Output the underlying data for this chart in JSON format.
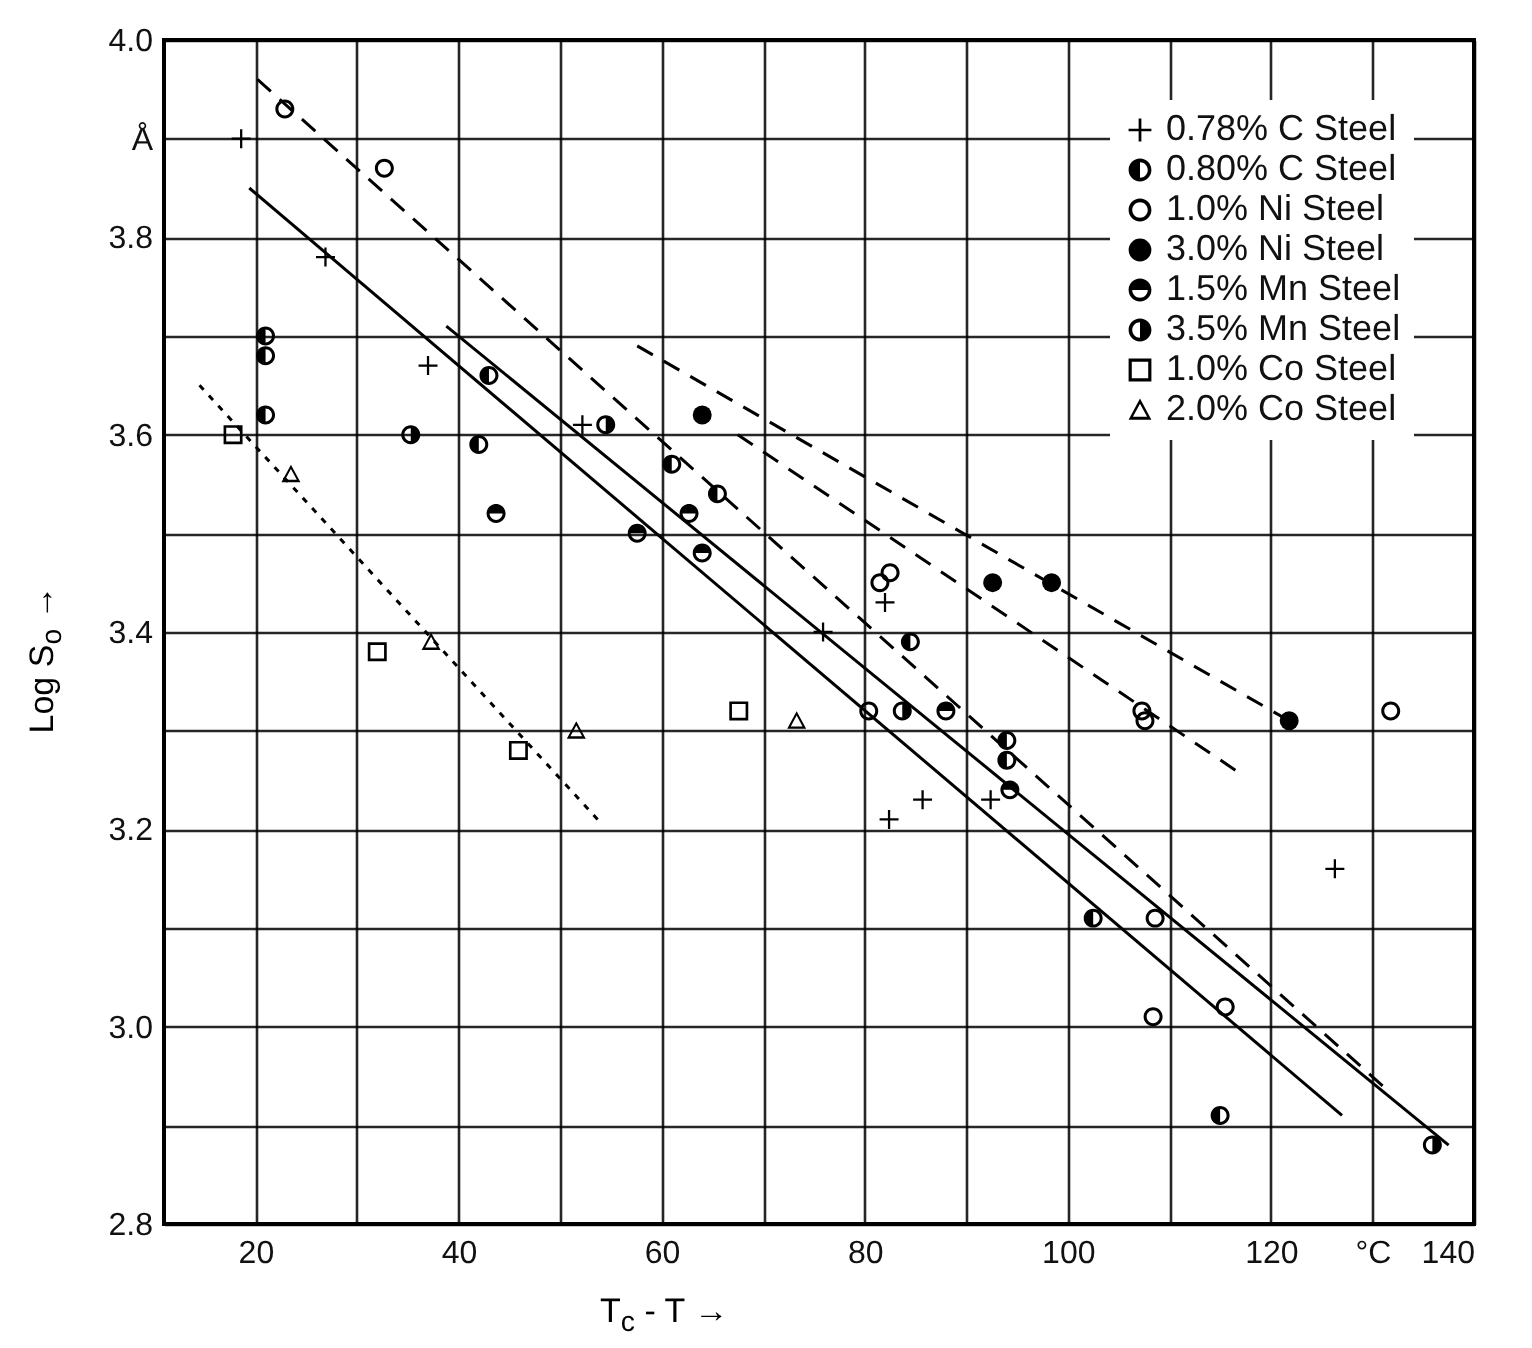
{
  "chart_data": {
    "type": "scatter",
    "xlabel": "T$_{c}$ - T →",
    "ylabel": "Log S$_{o}$ →",
    "xlim": [
      11,
      140
    ],
    "ylim": [
      2.8,
      4.0
    ],
    "xticks": [
      20,
      {
        "value": 30,
        "label": null
      },
      40,
      {
        "value": 50,
        "label": null
      },
      60,
      {
        "value": 70,
        "label": null
      },
      80,
      {
        "value": 90,
        "label": null
      },
      100,
      {
        "value": 110,
        "label": null
      },
      120,
      {
        "value": 130,
        "label": "°C"
      },
      140
    ],
    "yticks": [
      2.8,
      {
        "value": 2.9,
        "label": null
      },
      {
        "value": 3.0,
        "label": "3.0"
      },
      {
        "value": 3.1,
        "label": null
      },
      3.2,
      {
        "value": 3.3,
        "label": null
      },
      3.4,
      {
        "value": 3.5,
        "label": null
      },
      3.6,
      {
        "value": 3.7,
        "label": null
      },
      3.8,
      {
        "value": 3.9,
        "label": "Å"
      },
      {
        "value": 4.0,
        "label": "4.0"
      }
    ],
    "grid": true,
    "legend": "top right",
    "series": [
      {
        "marker": "cross",
        "name": "0.78% C Steel",
        "color": "#000000",
        "x": [
          18.6,
          26.9,
          37,
          52.2,
          75.9,
          82,
          82.4,
          85.7,
          92.4,
          126.3
        ],
        "values": [
          3.9,
          3.78,
          3.67,
          3.61,
          3.4,
          3.43,
          3.21,
          3.23,
          3.23,
          3.16
        ]
      },
      {
        "marker": "circle",
        "name": "0.80% C Steel",
        "color": "#000000",
        "x": [
          21,
          21,
          21,
          43,
          42,
          61,
          65.5,
          84.5,
          94,
          94,
          102.5,
          115
        ],
        "values": [
          3.7,
          3.68,
          3.62,
          3.66,
          3.59,
          3.57,
          3.54,
          3.39,
          3.29,
          3.27,
          3.11,
          2.91
        ]
      },
      {
        "marker": "circle",
        "name": "1.0% Ni  Steel",
        "color": "#000000",
        "x": [
          22.9,
          32.7,
          82.5,
          81.5,
          80.4,
          107.3,
          107.6,
          108.6,
          108.4,
          115.5,
          131.8
        ],
        "values": [
          3.93,
          3.87,
          3.46,
          3.45,
          3.32,
          3.32,
          3.31,
          3.11,
          3.01,
          3.02,
          3.32
        ]
      },
      {
        "marker": "circle",
        "name": "3.0% Ni  Steel",
        "color": "#000000",
        "x": [
          64,
          92.6,
          98.4,
          121.8
        ],
        "values": [
          3.62,
          3.45,
          3.45,
          3.31
        ]
      },
      {
        "marker": "circle",
        "name": "1.5% Mn Steel",
        "color": "#000000",
        "x": [
          43.7,
          57.6,
          62.7,
          64,
          88,
          94.3
        ],
        "values": [
          3.52,
          3.5,
          3.52,
          3.48,
          3.32,
          3.24
        ]
      },
      {
        "marker": "circle",
        "name": "3.5% Mn Steel",
        "color": "#000000",
        "x": [
          35.3,
          54.5,
          83.7,
          135.9
        ],
        "values": [
          3.6,
          3.61,
          3.32,
          2.88
        ]
      },
      {
        "marker": "square",
        "name": "1.0% Co Steel",
        "color": "#000000",
        "x": [
          17.8,
          32,
          45.9,
          67.6
        ],
        "values": [
          3.6,
          3.38,
          3.28,
          3.32
        ]
      },
      {
        "marker": "triangle",
        "name": "2.0% Co Steel",
        "color": "#000000",
        "x": [
          23.5,
          37.3,
          51.6,
          73.3
        ],
        "values": [
          3.56,
          3.39,
          3.3,
          3.31
        ]
      },
      {
        "type": "line",
        "line_style": "solid",
        "color": "#000000",
        "x": [
          19.4,
          127
        ],
        "values": [
          3.85,
          2.91
        ]
      },
      {
        "type": "line",
        "line_style": "solid",
        "color": "#000000",
        "x": [
          38.8,
          137.5
        ],
        "values": [
          3.71,
          2.88
        ]
      },
      {
        "type": "line",
        "line_style": "dashed",
        "color": "#000000",
        "x": [
          20.2,
          131
        ],
        "values": [
          3.96,
          2.94
        ]
      },
      {
        "type": "line",
        "line_style": "dashed",
        "color": "#000000",
        "x": [
          67.5,
          116.5
        ],
        "values": [
          3.6,
          3.26
        ]
      },
      {
        "type": "line",
        "line_style": "dashed",
        "color": "#000000",
        "x": [
          57.6,
          121.8
        ],
        "values": [
          3.69,
          3.31
        ]
      },
      {
        "type": "line",
        "line_style": "dotted",
        "color": "#000000",
        "x": [
          14.5,
          53.7
        ],
        "values": [
          3.65,
          3.21
        ]
      }
    ]
  }
}
